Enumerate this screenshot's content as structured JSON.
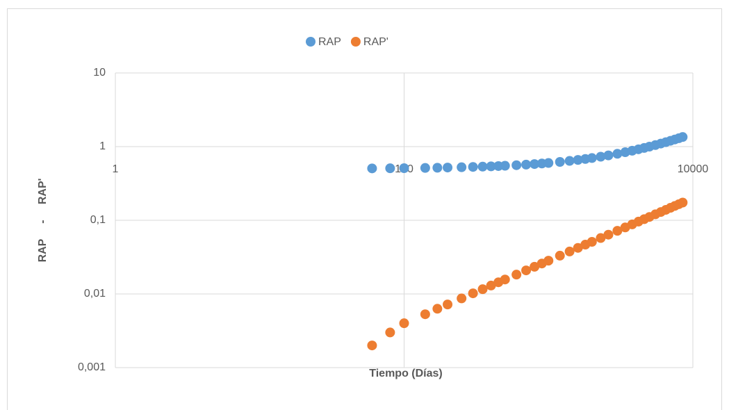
{
  "chart_data": {
    "type": "scatter",
    "xlabel": "Tiempo (Días)",
    "ylabel": "RAP     -     RAP'",
    "log_x": true,
    "log_y": true,
    "grid": true,
    "legend": "top",
    "x_axis_crosses_at": 1,
    "xlim": [
      1,
      10000
    ],
    "xticks": [
      1,
      100,
      10000
    ],
    "ylim": [
      0.001,
      10
    ],
    "yticks": [
      {
        "value": 0.001,
        "label": "0,001"
      },
      {
        "value": 0.01,
        "label": "0,01"
      },
      {
        "value": 0.1,
        "label": "0,1"
      },
      1,
      10
    ],
    "x": [
      60,
      80,
      100,
      140,
      170,
      200,
      250,
      300,
      350,
      400,
      450,
      500,
      600,
      700,
      800,
      900,
      1000,
      1200,
      1400,
      1600,
      1800,
      2000,
      2300,
      2600,
      3000,
      3400,
      3800,
      4200,
      4600,
      5000,
      5500,
      6000,
      6500,
      7000,
      7500,
      8000,
      8500
    ],
    "series": [
      {
        "name": "RAP",
        "color": "#5b9bd5",
        "values": [
          0.506,
          0.508,
          0.51,
          0.514,
          0.517,
          0.52,
          0.525,
          0.53,
          0.535,
          0.54,
          0.545,
          0.55,
          0.56,
          0.57,
          0.58,
          0.59,
          0.6,
          0.62,
          0.64,
          0.66,
          0.68,
          0.7,
          0.73,
          0.76,
          0.8,
          0.84,
          0.88,
          0.92,
          0.96,
          1.0,
          1.05,
          1.1,
          1.15,
          1.2,
          1.25,
          1.3,
          1.35
        ]
      },
      {
        "name": "RAP'",
        "color": "#ed7d31",
        "values": [
          0.002,
          0.003,
          0.004,
          0.0053,
          0.0063,
          0.0072,
          0.0087,
          0.0102,
          0.0116,
          0.013,
          0.0144,
          0.0157,
          0.0183,
          0.0209,
          0.0234,
          0.0259,
          0.0283,
          0.0331,
          0.0377,
          0.0422,
          0.0467,
          0.051,
          0.0574,
          0.0638,
          0.072,
          0.08,
          0.088,
          0.0959,
          0.1036,
          0.111,
          0.1205,
          0.1296,
          0.1387,
          0.1477,
          0.1566,
          0.1654,
          0.174
        ]
      }
    ]
  }
}
